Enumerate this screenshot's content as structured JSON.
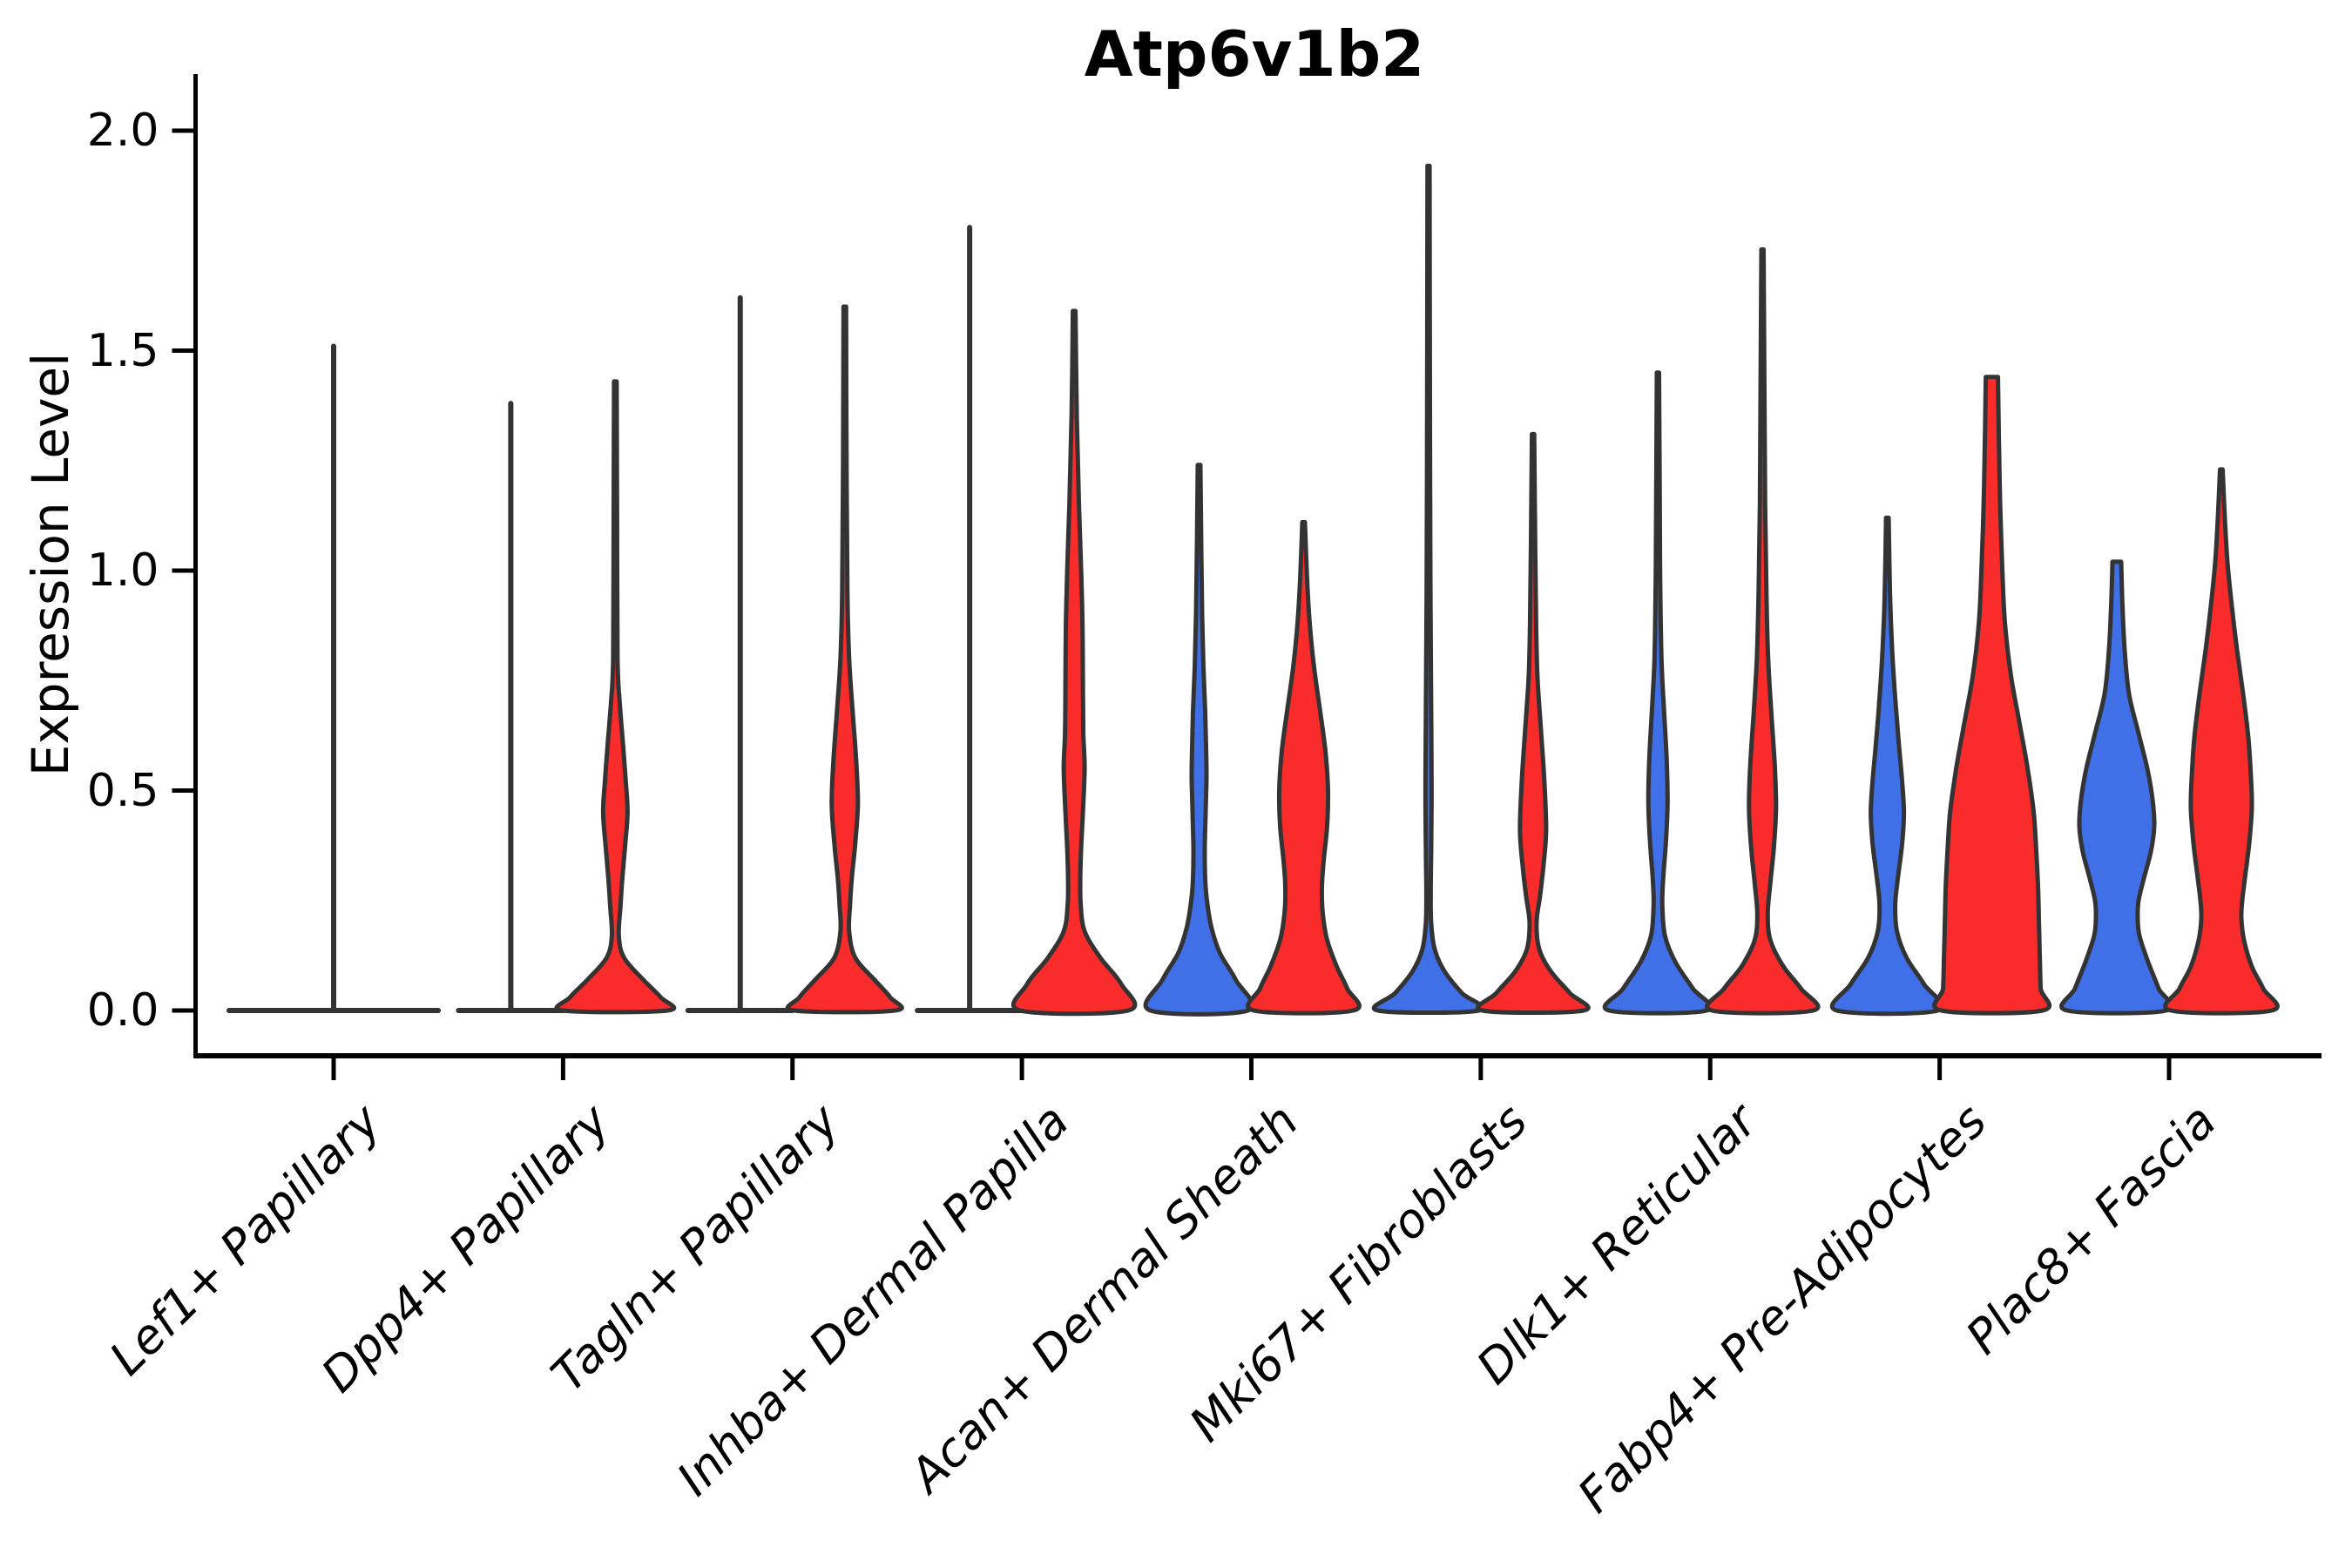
{
  "chart_data": {
    "type": "violin",
    "title": "Atp6v1b2",
    "ylabel": "Expression Level",
    "ylim": [
      0,
      2.0
    ],
    "ytick_labels": [
      "2.0",
      "1.5",
      "1.0",
      "0.5",
      "0.0"
    ],
    "ytick_values": [
      2.0,
      1.5,
      1.0,
      0.5,
      0.0
    ],
    "grid": "off",
    "legend": "none",
    "categories": [
      "Lef1+ Papillary",
      "Dpp4+ Papillary",
      "Tagln+ Papillary",
      "Inhba+ Dermal Papilla",
      "Acan+ Dermal Sheath",
      "Mki67+ Fibroblasts",
      "Dlk1+ Reticular",
      "Fabp4+ Pre-Adipocytes",
      "Plac8+ Fascia"
    ],
    "groups": [
      {
        "id": "blue",
        "color": "#4070E8"
      },
      {
        "id": "red",
        "color": "#FA2B2B"
      }
    ],
    "outline_color": "#333333",
    "violins": [
      {
        "category": "Lef1+ Papillary",
        "group": "single",
        "style": "spike",
        "offset": 0,
        "max": 1.51,
        "flat_halfwidth": 120
      },
      {
        "category": "Dpp4+ Papillary",
        "group": "blue",
        "style": "spike",
        "offset": -60,
        "max": 1.38,
        "flat_halfwidth": 60
      },
      {
        "category": "Dpp4+ Papillary",
        "group": "red",
        "style": "density",
        "offset": 60,
        "max": 1.43,
        "profile": [
          [
            1.43,
            1.5
          ],
          [
            1.1,
            2
          ],
          [
            0.8,
            2.5
          ],
          [
            0.7,
            5
          ],
          [
            0.6,
            9
          ],
          [
            0.52,
            12
          ],
          [
            0.45,
            14
          ],
          [
            0.37,
            11
          ],
          [
            0.3,
            8
          ],
          [
            0.24,
            6
          ],
          [
            0.17,
            4
          ],
          [
            0.12,
            10
          ],
          [
            0.07,
            32
          ],
          [
            0.03,
            52
          ],
          [
            0,
            60
          ]
        ]
      },
      {
        "category": "Tagln+ Papillary",
        "group": "blue",
        "style": "spike",
        "offset": -60,
        "max": 1.62,
        "flat_halfwidth": 60
      },
      {
        "category": "Tagln+ Papillary",
        "group": "red",
        "style": "density",
        "offset": 60,
        "max": 1.6,
        "profile": [
          [
            1.6,
            1.5
          ],
          [
            1.25,
            2
          ],
          [
            0.95,
            3
          ],
          [
            0.8,
            5
          ],
          [
            0.68,
            9
          ],
          [
            0.57,
            13
          ],
          [
            0.47,
            15
          ],
          [
            0.38,
            12
          ],
          [
            0.3,
            8
          ],
          [
            0.24,
            6
          ],
          [
            0.18,
            5
          ],
          [
            0.12,
            12
          ],
          [
            0.07,
            34
          ],
          [
            0.03,
            52
          ],
          [
            0,
            58
          ]
        ]
      },
      {
        "category": "Inhba+ Dermal Papilla",
        "group": "blue",
        "style": "spike",
        "offset": -60,
        "max": 1.78,
        "flat_halfwidth": 60
      },
      {
        "category": "Inhba+ Dermal Papilla",
        "group": "red",
        "style": "density",
        "offset": 60,
        "max": 1.59,
        "profile": [
          [
            1.59,
            1.5
          ],
          [
            1.35,
            3
          ],
          [
            1.15,
            5.5
          ],
          [
            1.0,
            8
          ],
          [
            0.88,
            9.5
          ],
          [
            0.75,
            10
          ],
          [
            0.63,
            10.5
          ],
          [
            0.55,
            12
          ],
          [
            0.45,
            10
          ],
          [
            0.37,
            8
          ],
          [
            0.3,
            7
          ],
          [
            0.24,
            7.5
          ],
          [
            0.18,
            12
          ],
          [
            0.12,
            30
          ],
          [
            0.06,
            54
          ],
          [
            0,
            62
          ]
        ]
      },
      {
        "category": "Acan+ Dermal Sheath",
        "group": "blue",
        "style": "density",
        "offset": -60,
        "max": 1.24,
        "profile": [
          [
            1.24,
            1.5
          ],
          [
            1.05,
            2.5
          ],
          [
            0.9,
            3.5
          ],
          [
            0.78,
            5
          ],
          [
            0.68,
            7
          ],
          [
            0.6,
            8
          ],
          [
            0.53,
            8.5
          ],
          [
            0.45,
            7.5
          ],
          [
            0.37,
            6.5
          ],
          [
            0.3,
            7
          ],
          [
            0.25,
            9
          ],
          [
            0.19,
            14
          ],
          [
            0.13,
            24
          ],
          [
            0.07,
            42
          ],
          [
            0,
            56
          ]
        ]
      },
      {
        "category": "Acan+ Dermal Sheath",
        "group": "red",
        "style": "density",
        "offset": 60,
        "max": 1.11,
        "profile": [
          [
            1.11,
            1.5
          ],
          [
            0.98,
            4
          ],
          [
            0.88,
            7
          ],
          [
            0.78,
            12
          ],
          [
            0.68,
            19
          ],
          [
            0.59,
            25
          ],
          [
            0.5,
            28
          ],
          [
            0.42,
            27
          ],
          [
            0.34,
            23
          ],
          [
            0.28,
            21
          ],
          [
            0.22,
            22
          ],
          [
            0.16,
            27
          ],
          [
            0.1,
            38
          ],
          [
            0.05,
            50
          ],
          [
            0,
            57
          ]
        ]
      },
      {
        "category": "Mki67+ Fibroblasts",
        "group": "blue",
        "style": "density",
        "offset": -60,
        "max": 1.92,
        "profile": [
          [
            1.92,
            1.2
          ],
          [
            1.5,
            1.5
          ],
          [
            1.2,
            1.8
          ],
          [
            0.95,
            2.2
          ],
          [
            0.75,
            2.8
          ],
          [
            0.6,
            3.3
          ],
          [
            0.48,
            3.5
          ],
          [
            0.36,
            3
          ],
          [
            0.27,
            2.5
          ],
          [
            0.2,
            3
          ],
          [
            0.14,
            7
          ],
          [
            0.09,
            18
          ],
          [
            0.04,
            38
          ],
          [
            0,
            58
          ]
        ]
      },
      {
        "category": "Mki67+ Fibroblasts",
        "group": "red",
        "style": "density",
        "offset": 60,
        "max": 1.31,
        "profile": [
          [
            1.31,
            1.3
          ],
          [
            1.05,
            2.5
          ],
          [
            0.88,
            3.5
          ],
          [
            0.76,
            5
          ],
          [
            0.64,
            9
          ],
          [
            0.52,
            13
          ],
          [
            0.41,
            15
          ],
          [
            0.33,
            12
          ],
          [
            0.26,
            8
          ],
          [
            0.2,
            4
          ],
          [
            0.14,
            7
          ],
          [
            0.09,
            20
          ],
          [
            0.04,
            42
          ],
          [
            0,
            58
          ]
        ]
      },
      {
        "category": "Dlk1+ Reticular",
        "group": "blue",
        "style": "density",
        "offset": -60,
        "max": 1.45,
        "profile": [
          [
            1.45,
            1.3
          ],
          [
            1.18,
            2
          ],
          [
            0.98,
            2.6
          ],
          [
            0.8,
            4
          ],
          [
            0.68,
            7
          ],
          [
            0.57,
            10
          ],
          [
            0.47,
            11
          ],
          [
            0.38,
            9
          ],
          [
            0.3,
            6
          ],
          [
            0.24,
            5
          ],
          [
            0.17,
            8
          ],
          [
            0.11,
            20
          ],
          [
            0.05,
            40
          ],
          [
            0,
            56
          ]
        ]
      },
      {
        "category": "Dlk1+ Reticular",
        "group": "red",
        "style": "density",
        "offset": 60,
        "max": 1.73,
        "profile": [
          [
            1.73,
            1.3
          ],
          [
            1.4,
            2.2
          ],
          [
            1.15,
            3
          ],
          [
            0.95,
            4.5
          ],
          [
            0.8,
            6.5
          ],
          [
            0.68,
            10
          ],
          [
            0.56,
            14
          ],
          [
            0.46,
            15.5
          ],
          [
            0.37,
            13
          ],
          [
            0.29,
            9
          ],
          [
            0.22,
            6
          ],
          [
            0.16,
            9
          ],
          [
            0.1,
            24
          ],
          [
            0.05,
            44
          ],
          [
            0,
            58
          ]
        ]
      },
      {
        "category": "Fabp4+ Pre-Adipocytes",
        "group": "blue",
        "style": "density",
        "offset": -60,
        "max": 1.12,
        "profile": [
          [
            1.12,
            1.5
          ],
          [
            0.95,
            3
          ],
          [
            0.82,
            5.5
          ],
          [
            0.71,
            9
          ],
          [
            0.61,
            13
          ],
          [
            0.52,
            17
          ],
          [
            0.45,
            19
          ],
          [
            0.38,
            17
          ],
          [
            0.3,
            12
          ],
          [
            0.24,
            9
          ],
          [
            0.18,
            11
          ],
          [
            0.12,
            22
          ],
          [
            0.06,
            42
          ],
          [
            0,
            58
          ]
        ]
      },
      {
        "category": "Fabp4+ Pre-Adipocytes",
        "group": "red",
        "style": "density",
        "offset": 60,
        "max": 1.44,
        "blunt_top": true,
        "profile": [
          [
            1.44,
            7
          ],
          [
            1.3,
            8
          ],
          [
            1.15,
            9.5
          ],
          [
            1.0,
            12
          ],
          [
            0.88,
            15
          ],
          [
            0.76,
            22
          ],
          [
            0.65,
            32
          ],
          [
            0.55,
            41
          ],
          [
            0.45,
            48
          ],
          [
            0.36,
            51
          ],
          [
            0.28,
            53
          ],
          [
            0.2,
            54
          ],
          [
            0.12,
            55
          ],
          [
            0.05,
            56
          ],
          [
            0,
            58
          ]
        ]
      },
      {
        "category": "Plac8+ Fascia",
        "group": "blue",
        "style": "density",
        "offset": -60,
        "max": 1.02,
        "blunt_top": true,
        "profile": [
          [
            1.02,
            5
          ],
          [
            0.92,
            6.5
          ],
          [
            0.82,
            9
          ],
          [
            0.72,
            14
          ],
          [
            0.63,
            25
          ],
          [
            0.55,
            35
          ],
          [
            0.48,
            41
          ],
          [
            0.42,
            43
          ],
          [
            0.36,
            39
          ],
          [
            0.3,
            31
          ],
          [
            0.25,
            25
          ],
          [
            0.21,
            24
          ],
          [
            0.17,
            26
          ],
          [
            0.11,
            36
          ],
          [
            0.05,
            48
          ],
          [
            0,
            57
          ]
        ]
      },
      {
        "category": "Plac8+ Fascia",
        "group": "red",
        "style": "density",
        "offset": 60,
        "max": 1.23,
        "profile": [
          [
            1.23,
            1.5
          ],
          [
            1.12,
            4
          ],
          [
            1.02,
            7
          ],
          [
            0.92,
            12
          ],
          [
            0.82,
            18
          ],
          [
            0.72,
            25
          ],
          [
            0.62,
            31
          ],
          [
            0.53,
            34
          ],
          [
            0.46,
            35
          ],
          [
            0.38,
            32
          ],
          [
            0.3,
            27
          ],
          [
            0.25,
            24
          ],
          [
            0.21,
            23
          ],
          [
            0.16,
            26
          ],
          [
            0.1,
            35
          ],
          [
            0.05,
            48
          ],
          [
            0,
            58
          ]
        ]
      }
    ]
  }
}
